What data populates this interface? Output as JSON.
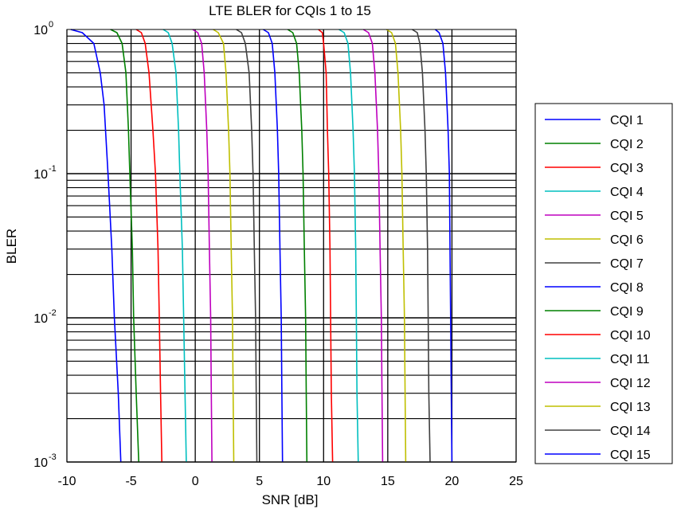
{
  "chart_data": {
    "type": "line",
    "title": "LTE BLER for CQIs 1 to 15",
    "xlabel": "SNR [dB]",
    "ylabel": "BLER",
    "xlim": [
      -10,
      25
    ],
    "ylim": [
      0.001,
      1
    ],
    "yscale": "log",
    "grid": true,
    "legend_position": "right",
    "x_ticks": [
      "-10",
      "-5",
      "0",
      "5",
      "10",
      "15",
      "20",
      "25"
    ],
    "y_ticks": [
      {
        "base": "10",
        "exp": "-3",
        "value": 0.001
      },
      {
        "base": "10",
        "exp": "-2",
        "value": 0.01
      },
      {
        "base": "10",
        "exp": "-1",
        "value": 0.1
      },
      {
        "base": "10",
        "exp": "0",
        "value": 1
      }
    ],
    "series": [
      {
        "name": "CQI 1",
        "color": "#0000ff",
        "points": [
          [
            -9.7,
            1
          ],
          [
            -8.8,
            0.95
          ],
          [
            -7.9,
            0.8
          ],
          [
            -7.4,
            0.5
          ],
          [
            -7.1,
            0.3
          ],
          [
            -6.8,
            0.1
          ],
          [
            -6.5,
            0.03
          ],
          [
            -6.3,
            0.01
          ],
          [
            -6.0,
            0.003
          ],
          [
            -5.8,
            0.001
          ]
        ]
      },
      {
        "name": "CQI 2",
        "color": "#008000",
        "points": [
          [
            -6.6,
            1
          ],
          [
            -6.1,
            0.95
          ],
          [
            -5.7,
            0.8
          ],
          [
            -5.4,
            0.5
          ],
          [
            -5.2,
            0.2
          ],
          [
            -5.1,
            0.1
          ],
          [
            -4.9,
            0.03
          ],
          [
            -4.8,
            0.01
          ],
          [
            -4.6,
            0.003
          ],
          [
            -4.4,
            0.001
          ]
        ]
      },
      {
        "name": "CQI 3",
        "color": "#ff0000",
        "points": [
          [
            -4.6,
            1
          ],
          [
            -4.2,
            0.95
          ],
          [
            -3.9,
            0.8
          ],
          [
            -3.6,
            0.5
          ],
          [
            -3.3,
            0.2
          ],
          [
            -3.1,
            0.1
          ],
          [
            -2.9,
            0.03
          ],
          [
            -2.8,
            0.01
          ],
          [
            -2.7,
            0.003
          ],
          [
            -2.6,
            0.001
          ]
        ]
      },
      {
        "name": "CQI 4",
        "color": "#00bfbf",
        "points": [
          [
            -2.5,
            1
          ],
          [
            -2.1,
            0.95
          ],
          [
            -1.8,
            0.8
          ],
          [
            -1.5,
            0.5
          ],
          [
            -1.3,
            0.2
          ],
          [
            -1.2,
            0.1
          ],
          [
            -1.0,
            0.03
          ],
          [
            -0.9,
            0.01
          ],
          [
            -0.8,
            0.003
          ],
          [
            -0.7,
            0.001
          ]
        ]
      },
      {
        "name": "CQI 5",
        "color": "#bf00bf",
        "points": [
          [
            -0.2,
            1
          ],
          [
            0.2,
            0.95
          ],
          [
            0.5,
            0.8
          ],
          [
            0.7,
            0.5
          ],
          [
            0.9,
            0.2
          ],
          [
            1.0,
            0.1
          ],
          [
            1.1,
            0.03
          ],
          [
            1.2,
            0.01
          ],
          [
            1.25,
            0.003
          ],
          [
            1.3,
            0.001
          ]
        ]
      },
      {
        "name": "CQI 6",
        "color": "#bfbf00",
        "points": [
          [
            1.4,
            1
          ],
          [
            1.8,
            0.95
          ],
          [
            2.2,
            0.8
          ],
          [
            2.4,
            0.5
          ],
          [
            2.6,
            0.2
          ],
          [
            2.7,
            0.1
          ],
          [
            2.8,
            0.03
          ],
          [
            2.9,
            0.01
          ],
          [
            2.95,
            0.003
          ],
          [
            3.0,
            0.001
          ]
        ]
      },
      {
        "name": "CQI 7",
        "color": "#404040",
        "points": [
          [
            3.2,
            1
          ],
          [
            3.6,
            0.95
          ],
          [
            3.9,
            0.8
          ],
          [
            4.2,
            0.5
          ],
          [
            4.4,
            0.2
          ],
          [
            4.5,
            0.1
          ],
          [
            4.6,
            0.03
          ],
          [
            4.7,
            0.01
          ],
          [
            4.75,
            0.003
          ],
          [
            4.8,
            0.001
          ]
        ]
      },
      {
        "name": "CQI 8",
        "color": "#0000ff",
        "points": [
          [
            5.3,
            1
          ],
          [
            5.7,
            0.95
          ],
          [
            6.0,
            0.8
          ],
          [
            6.2,
            0.5
          ],
          [
            6.4,
            0.2
          ],
          [
            6.5,
            0.1
          ],
          [
            6.6,
            0.03
          ],
          [
            6.7,
            0.01
          ],
          [
            6.75,
            0.003
          ],
          [
            6.8,
            0.001
          ]
        ]
      },
      {
        "name": "CQI 9",
        "color": "#008000",
        "points": [
          [
            7.2,
            1
          ],
          [
            7.6,
            0.95
          ],
          [
            7.9,
            0.8
          ],
          [
            8.1,
            0.5
          ],
          [
            8.3,
            0.2
          ],
          [
            8.4,
            0.1
          ],
          [
            8.5,
            0.03
          ],
          [
            8.6,
            0.01
          ],
          [
            8.65,
            0.003
          ],
          [
            8.7,
            0.001
          ]
        ]
      },
      {
        "name": "CQI 10",
        "color": "#ff0000",
        "points": [
          [
            9.6,
            1
          ],
          [
            9.9,
            0.95
          ],
          [
            10.0,
            0.8
          ],
          [
            10.2,
            0.5
          ],
          [
            10.3,
            0.2
          ],
          [
            10.4,
            0.1
          ],
          [
            10.5,
            0.03
          ],
          [
            10.55,
            0.01
          ],
          [
            10.6,
            0.003
          ],
          [
            10.7,
            0.001
          ]
        ]
      },
      {
        "name": "CQI 11",
        "color": "#00bfbf",
        "points": [
          [
            11.2,
            1
          ],
          [
            11.6,
            0.95
          ],
          [
            11.9,
            0.8
          ],
          [
            12.1,
            0.5
          ],
          [
            12.3,
            0.2
          ],
          [
            12.4,
            0.1
          ],
          [
            12.5,
            0.03
          ],
          [
            12.55,
            0.01
          ],
          [
            12.6,
            0.003
          ],
          [
            12.7,
            0.001
          ]
        ]
      },
      {
        "name": "CQI 12",
        "color": "#bf00bf",
        "points": [
          [
            13.1,
            1
          ],
          [
            13.5,
            0.95
          ],
          [
            13.8,
            0.8
          ],
          [
            14.0,
            0.5
          ],
          [
            14.2,
            0.2
          ],
          [
            14.3,
            0.1
          ],
          [
            14.4,
            0.03
          ],
          [
            14.5,
            0.01
          ],
          [
            14.55,
            0.003
          ],
          [
            14.6,
            0.001
          ]
        ]
      },
      {
        "name": "CQI 13",
        "color": "#bfbf00",
        "points": [
          [
            14.9,
            1
          ],
          [
            15.3,
            0.95
          ],
          [
            15.6,
            0.8
          ],
          [
            15.8,
            0.5
          ],
          [
            16.0,
            0.2
          ],
          [
            16.1,
            0.1
          ],
          [
            16.2,
            0.03
          ],
          [
            16.3,
            0.01
          ],
          [
            16.35,
            0.003
          ],
          [
            16.4,
            0.001
          ]
        ]
      },
      {
        "name": "CQI 14",
        "color": "#404040",
        "points": [
          [
            16.9,
            1
          ],
          [
            17.3,
            0.95
          ],
          [
            17.5,
            0.8
          ],
          [
            17.7,
            0.5
          ],
          [
            17.9,
            0.2
          ],
          [
            18.0,
            0.1
          ],
          [
            18.1,
            0.03
          ],
          [
            18.15,
            0.01
          ],
          [
            18.2,
            0.003
          ],
          [
            18.3,
            0.001
          ]
        ]
      },
      {
        "name": "CQI 15",
        "color": "#0000ff",
        "points": [
          [
            18.7,
            1
          ],
          [
            19.0,
            0.95
          ],
          [
            19.3,
            0.8
          ],
          [
            19.5,
            0.5
          ],
          [
            19.7,
            0.2
          ],
          [
            19.8,
            0.1
          ],
          [
            19.85,
            0.03
          ],
          [
            19.9,
            0.01
          ],
          [
            19.95,
            0.003
          ],
          [
            20.0,
            0.001
          ]
        ]
      }
    ]
  }
}
